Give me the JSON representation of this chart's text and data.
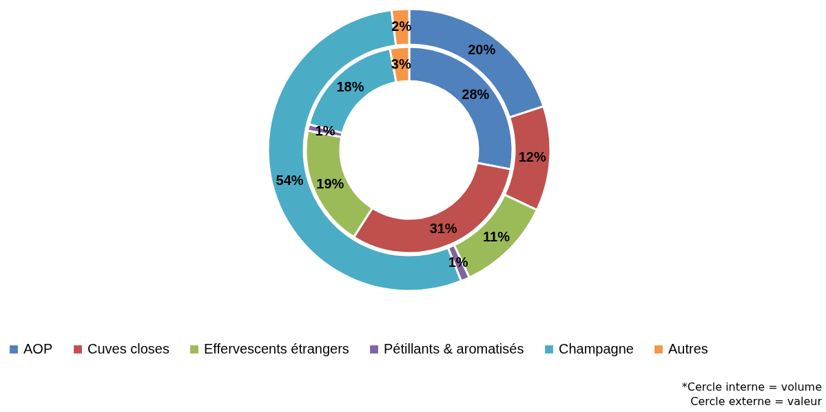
{
  "chart_data": {
    "type": "donut",
    "categories": [
      "AOP",
      "Cuves closes",
      "Effervescents étrangers",
      "Pétillants & aromatisés",
      "Champagne",
      "Autres"
    ],
    "colors": [
      "#4f81bd",
      "#c0504d",
      "#9bbb59",
      "#8064a2",
      "#4bacc6",
      "#f79646"
    ],
    "series": [
      {
        "values": [
          28,
          31,
          19,
          1,
          18,
          3
        ],
        "value_labels": [
          "28%",
          "31%",
          "19%",
          "1%",
          "18%",
          "3%"
        ]
      },
      {
        "values": [
          20,
          12,
          11,
          1,
          54,
          2
        ],
        "value_labels": [
          "20%",
          "12%",
          "11%",
          "1%",
          "54%",
          "2%"
        ]
      }
    ],
    "legend": "bottom",
    "annotations": [
      "*Cercle interne = volume",
      "Cercle externe = valeur"
    ]
  }
}
